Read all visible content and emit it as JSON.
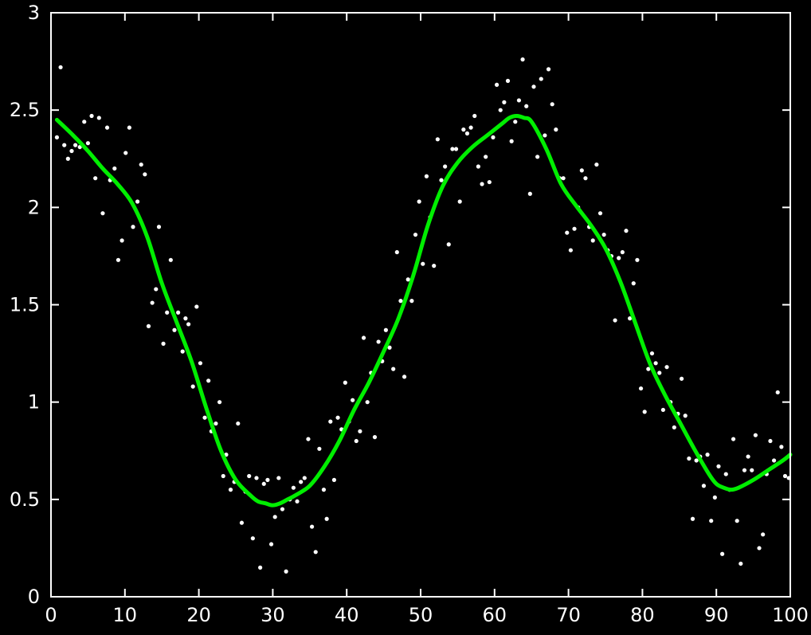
{
  "chart_data": {
    "type": "scatter",
    "title": "",
    "xlabel": "",
    "ylabel": "",
    "xlim": [
      0,
      100
    ],
    "ylim": [
      0,
      3
    ],
    "x_ticks": [
      "0",
      "10",
      "20",
      "30",
      "40",
      "50",
      "60",
      "70",
      "80",
      "90",
      "100"
    ],
    "y_ticks": [
      "0",
      "0.5",
      "1",
      "1.5",
      "2",
      "2.5",
      "3"
    ],
    "grid": false,
    "legend": "none",
    "colors": {
      "background": "#000000",
      "axes": "#ffffff",
      "points": "#ffffff",
      "fit_line": "#00ee00"
    },
    "series": [
      {
        "kind": "points",
        "x": [
          0.8,
          1.3,
          1.8,
          2.3,
          2.8,
          3.3,
          3.9,
          4.5,
          5.0,
          5.5,
          6.0,
          6.5,
          7.0,
          7.6,
          8.0,
          8.6,
          9.1,
          9.6,
          10.1,
          10.6,
          11.1,
          11.7,
          12.2,
          12.7,
          13.2,
          13.7,
          14.2,
          14.6,
          15.2,
          15.7,
          16.2,
          16.7,
          17.2,
          17.8,
          18.2,
          18.6,
          19.2,
          19.7,
          20.2,
          20.8,
          21.3,
          21.7,
          22.3,
          22.8,
          23.3,
          23.7,
          24.3,
          24.8,
          25.3,
          25.8,
          26.3,
          26.8,
          27.3,
          27.8,
          28.3,
          28.8,
          29.3,
          29.8,
          30.3,
          30.8,
          31.3,
          31.8,
          32.3,
          32.8,
          33.3,
          33.8,
          34.3,
          34.8,
          35.3,
          35.8,
          36.3,
          36.9,
          37.3,
          37.8,
          38.3,
          38.8,
          39.3,
          39.8,
          40.3,
          40.8,
          41.3,
          41.8,
          42.3,
          42.8,
          43.3,
          43.8,
          44.3,
          44.8,
          45.3,
          45.8,
          46.3,
          46.8,
          47.3,
          47.8,
          48.3,
          48.8,
          49.3,
          49.8,
          50.3,
          50.8,
          51.3,
          51.8,
          52.3,
          52.8,
          53.3,
          53.8,
          54.3,
          54.8,
          55.3,
          55.8,
          56.3,
          56.8,
          57.3,
          57.8,
          58.3,
          58.8,
          59.3,
          59.8,
          60.3,
          60.8,
          61.3,
          61.8,
          62.3,
          62.8,
          63.3,
          63.8,
          64.3,
          64.8,
          65.3,
          65.8,
          66.3,
          66.8,
          67.3,
          67.8,
          68.3,
          68.8,
          69.3,
          69.8,
          70.3,
          70.8,
          71.3,
          71.8,
          72.3,
          72.8,
          73.3,
          73.8,
          74.3,
          74.8,
          75.3,
          75.8,
          76.3,
          76.8,
          77.3,
          77.8,
          78.3,
          78.8,
          79.3,
          79.8,
          80.3,
          80.8,
          81.3,
          81.8,
          82.3,
          82.8,
          83.3,
          83.8,
          84.3,
          84.8,
          85.3,
          85.8,
          86.3,
          86.8,
          87.3,
          87.8,
          88.3,
          88.8,
          89.3,
          89.8,
          90.3,
          90.8,
          91.3,
          91.8,
          92.3,
          92.8,
          93.3,
          93.8,
          94.3,
          94.8,
          95.3,
          95.8,
          96.3,
          96.8,
          97.3,
          97.8,
          98.3,
          98.8,
          99.3,
          99.8
        ],
        "y": [
          2.36,
          2.72,
          2.32,
          2.25,
          2.29,
          2.32,
          2.31,
          2.44,
          2.33,
          2.47,
          2.15,
          2.46,
          1.97,
          2.41,
          2.14,
          2.2,
          1.73,
          1.83,
          2.28,
          2.41,
          1.9,
          2.03,
          2.22,
          2.17,
          1.39,
          1.51,
          1.58,
          1.9,
          1.3,
          1.46,
          1.73,
          1.37,
          1.46,
          1.26,
          1.43,
          1.4,
          1.08,
          1.49,
          1.2,
          0.92,
          1.11,
          0.85,
          0.89,
          1.0,
          0.62,
          0.73,
          0.55,
          0.59,
          0.89,
          0.38,
          0.54,
          0.62,
          0.3,
          0.61,
          0.15,
          0.58,
          0.6,
          0.27,
          0.41,
          0.61,
          0.45,
          0.13,
          0.5,
          0.56,
          0.49,
          0.59,
          0.61,
          0.81,
          0.36,
          0.23,
          0.76,
          0.55,
          0.4,
          0.9,
          0.6,
          0.92,
          0.86,
          1.1,
          0.9,
          1.01,
          0.8,
          0.85,
          1.33,
          1.0,
          1.15,
          0.82,
          1.31,
          1.21,
          1.37,
          1.28,
          1.17,
          1.77,
          1.52,
          1.13,
          1.63,
          1.52,
          1.86,
          2.03,
          1.71,
          2.16,
          1.95,
          1.7,
          2.35,
          2.14,
          2.21,
          1.81,
          2.3,
          2.3,
          2.03,
          2.4,
          2.38,
          2.41,
          2.47,
          2.21,
          2.12,
          2.26,
          2.13,
          2.36,
          2.63,
          2.5,
          2.54,
          2.65,
          2.34,
          2.44,
          2.55,
          2.76,
          2.52,
          2.07,
          2.62,
          2.26,
          2.66,
          2.37,
          2.71,
          2.53,
          2.4,
          2.15,
          2.15,
          1.87,
          1.78,
          1.89,
          2.0,
          2.19,
          2.15,
          1.9,
          1.83,
          2.22,
          1.97,
          1.86,
          1.78,
          1.75,
          1.42,
          1.74,
          1.77,
          1.88,
          1.43,
          1.61,
          1.73,
          1.07,
          0.95,
          1.17,
          1.25,
          1.2,
          1.15,
          0.96,
          1.18,
          1.0,
          0.87,
          0.94,
          1.12,
          0.93,
          0.71,
          0.4,
          0.7,
          0.72,
          0.57,
          0.73,
          0.39,
          0.51,
          0.67,
          0.22,
          0.63,
          0.55,
          0.81,
          0.39,
          0.17,
          0.65,
          0.72,
          0.65,
          0.83,
          0.25,
          0.32,
          0.63,
          0.8,
          0.7,
          1.05,
          0.77,
          0.62,
          0.61
        ]
      },
      {
        "kind": "fit_line",
        "x": [
          0.8,
          3,
          5,
          7,
          9,
          11,
          13,
          15,
          17,
          19,
          21,
          23,
          25,
          27,
          28,
          29,
          30,
          31,
          32,
          33,
          35,
          37,
          39,
          41,
          43,
          45,
          47,
          49,
          51,
          53,
          55,
          57,
          59,
          61,
          62,
          63,
          64,
          65,
          67,
          69,
          71,
          73,
          75,
          77,
          79,
          81,
          83,
          85,
          87,
          89,
          90,
          91,
          92,
          93,
          95,
          97,
          99,
          100
        ],
        "y": [
          2.45,
          2.37,
          2.29,
          2.2,
          2.12,
          2.02,
          1.85,
          1.61,
          1.41,
          1.21,
          0.97,
          0.75,
          0.6,
          0.52,
          0.49,
          0.48,
          0.47,
          0.48,
          0.5,
          0.52,
          0.57,
          0.67,
          0.8,
          0.96,
          1.1,
          1.26,
          1.43,
          1.65,
          1.91,
          2.11,
          2.23,
          2.31,
          2.37,
          2.43,
          2.46,
          2.47,
          2.46,
          2.44,
          2.3,
          2.12,
          2.01,
          1.91,
          1.79,
          1.62,
          1.41,
          1.2,
          1.04,
          0.9,
          0.76,
          0.63,
          0.58,
          0.56,
          0.55,
          0.56,
          0.6,
          0.65,
          0.7,
          0.73
        ]
      }
    ]
  }
}
